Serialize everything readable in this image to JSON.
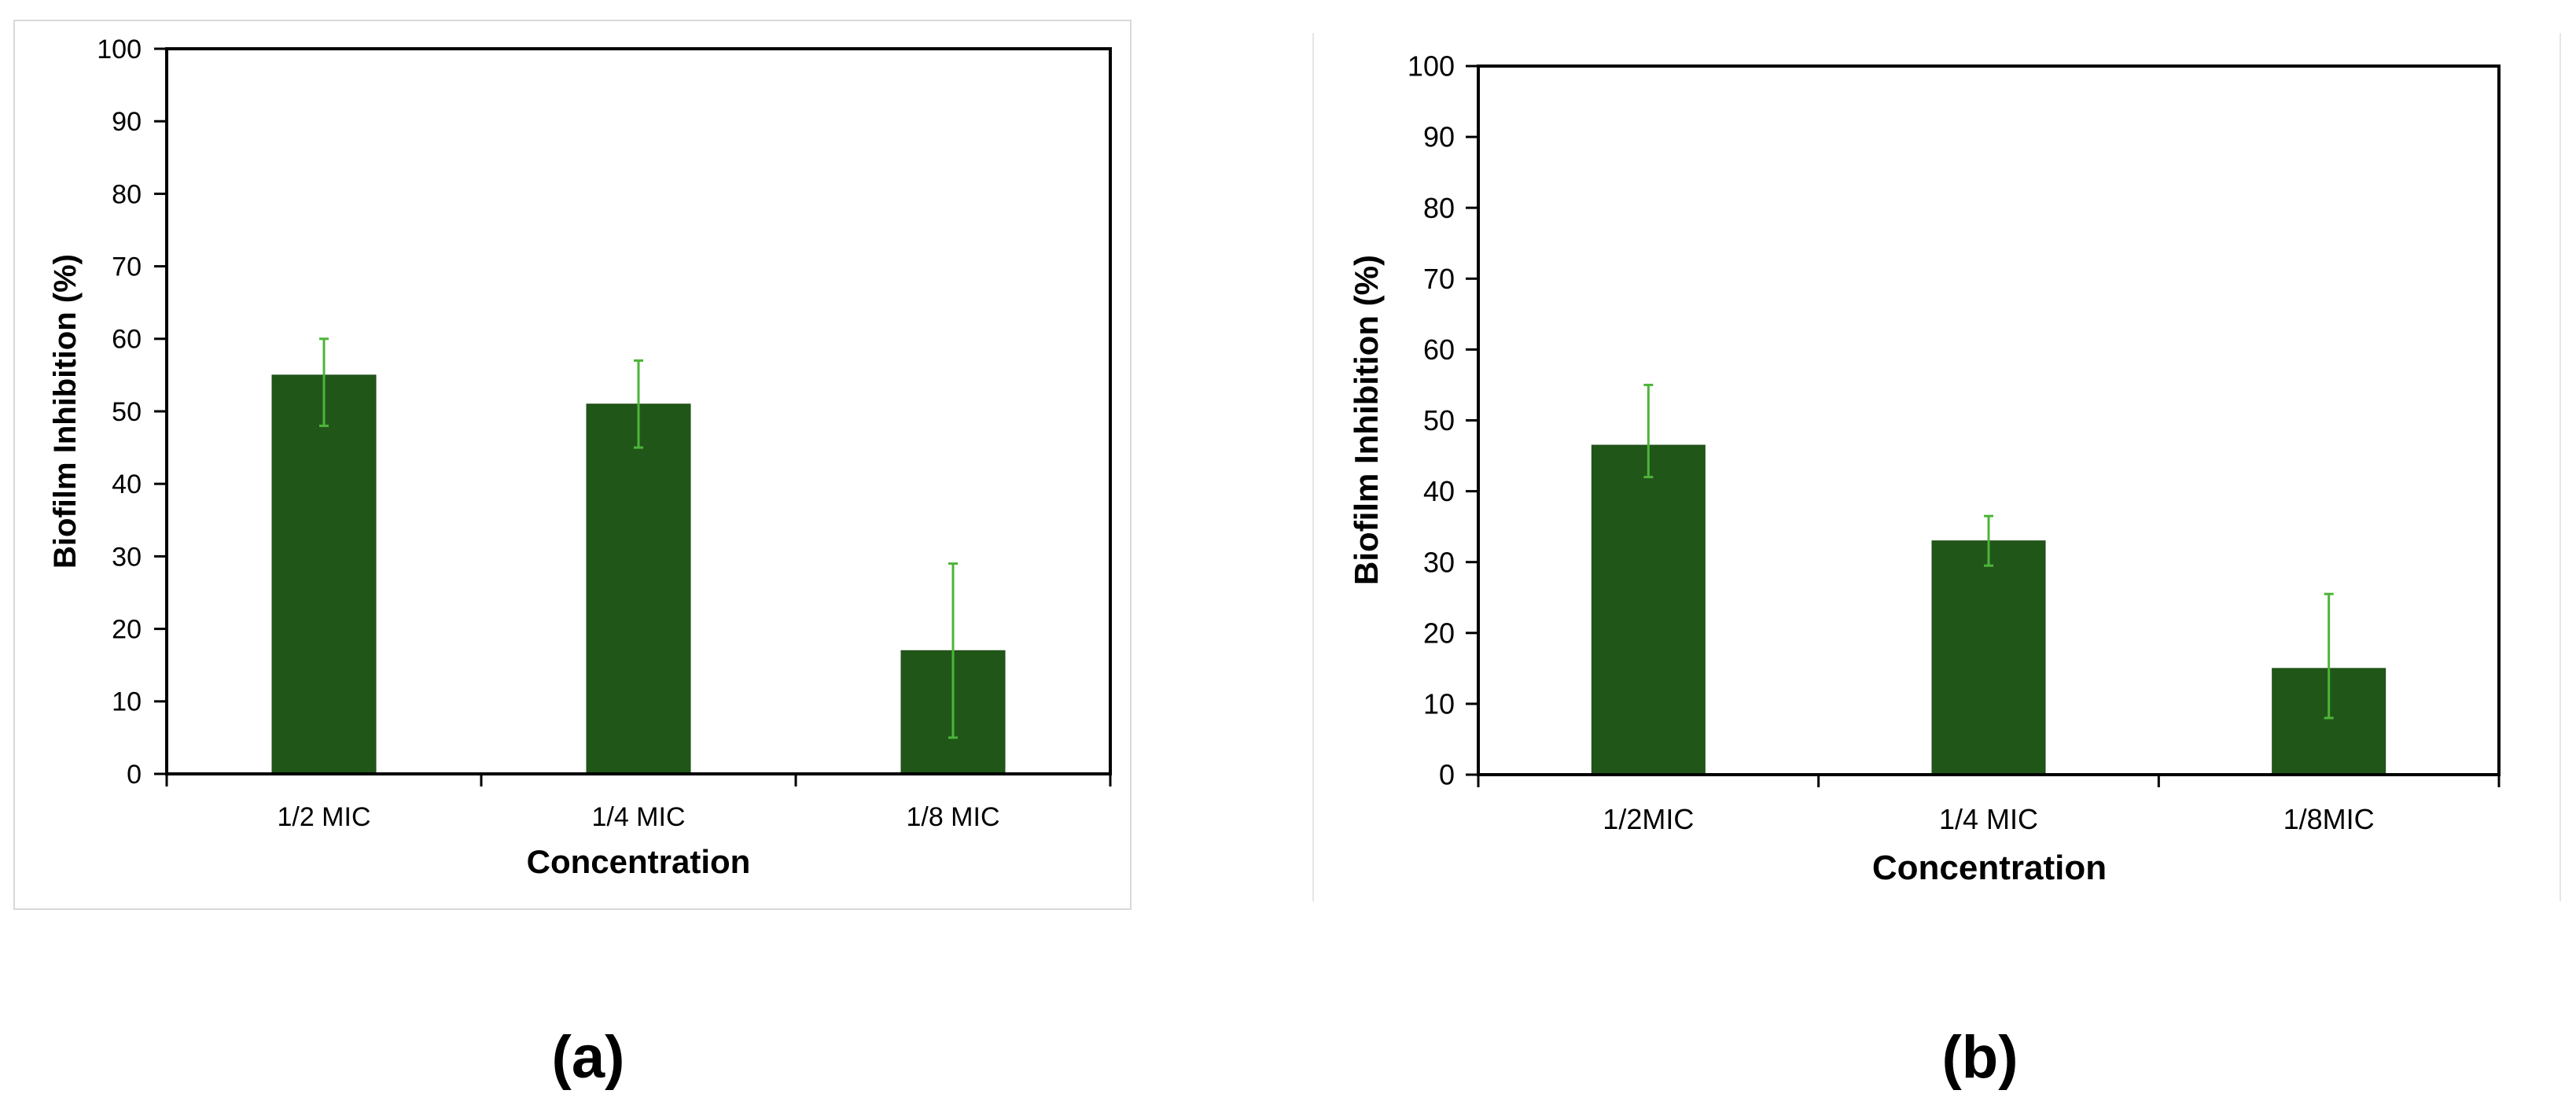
{
  "colors": {
    "bar": "#215619",
    "bar_edge": "#1d4a16",
    "error_bar": "#4db43a",
    "axis": "#000000",
    "frame": "#d9d9d9"
  },
  "chart_data": [
    {
      "type": "bar",
      "panel_label": "(a)",
      "categories": [
        "1/2 MIC",
        "1/4 MIC",
        "1/8 MIC"
      ],
      "values": [
        55,
        51,
        17
      ],
      "error_upper": [
        60,
        57,
        29
      ],
      "error_lower": [
        48,
        45,
        5
      ],
      "xlabel": "Concentration",
      "ylabel": "Biofilm Inhibition (%)",
      "ylim": [
        0,
        100
      ],
      "yticks": [
        "0",
        "10",
        "20",
        "30",
        "40",
        "50",
        "60",
        "70",
        "80",
        "90",
        "100"
      ],
      "grid": false,
      "legend": "none"
    },
    {
      "type": "bar",
      "panel_label": "(b)",
      "categories": [
        "1/2MIC",
        "1/4 MIC",
        "1/8MIC"
      ],
      "values": [
        46.5,
        33,
        15
      ],
      "error_upper": [
        55,
        36.5,
        25.5
      ],
      "error_lower": [
        42,
        29.5,
        8
      ],
      "xlabel": "Concentration",
      "ylabel": "Biofilm Inhibition (%)",
      "ylim": [
        0,
        100
      ],
      "yticks": [
        "0",
        "10",
        "20",
        "30",
        "40",
        "50",
        "60",
        "70",
        "80",
        "90",
        "100"
      ],
      "grid": false,
      "legend": "none"
    }
  ]
}
